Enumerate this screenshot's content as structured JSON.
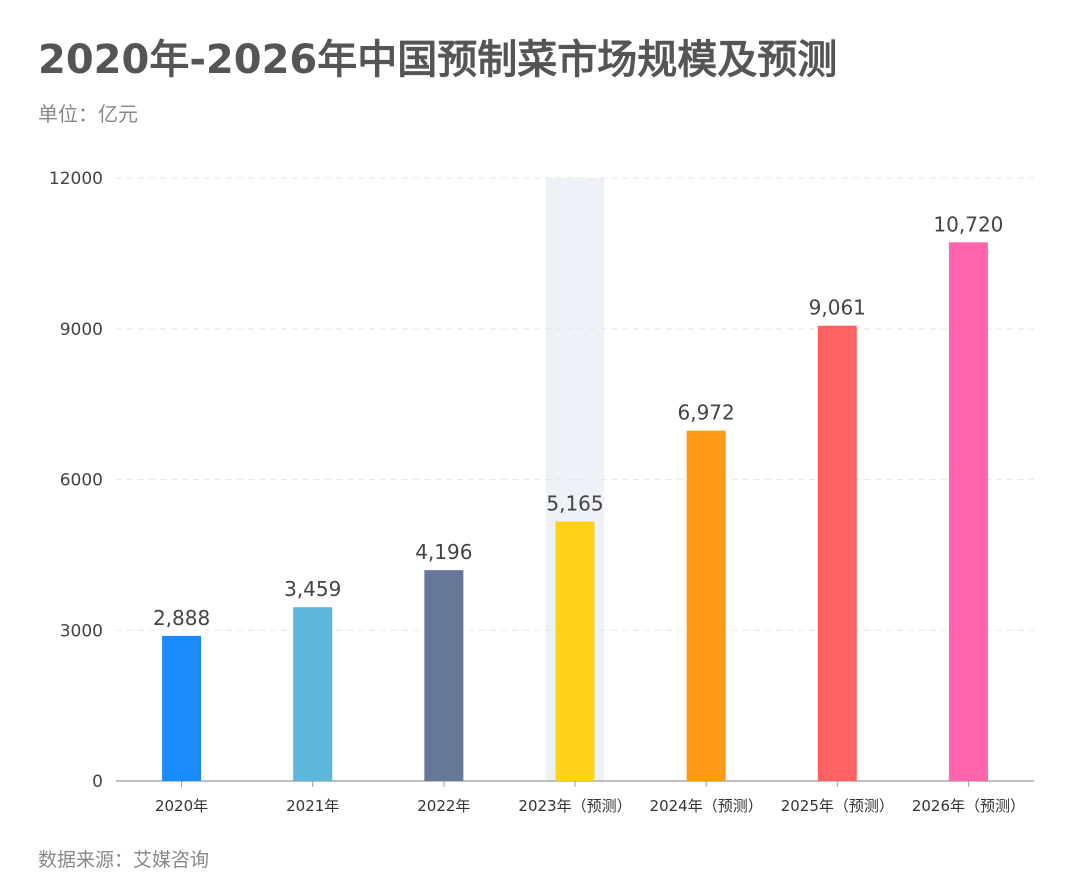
{
  "title": "2020年-2026年中国预制菜市场规模及预测",
  "unit_label": "单位：亿元",
  "source_label": "数据来源：艾媒咨询",
  "chart_data": {
    "type": "bar",
    "title": "2020年-2026年中国预制菜市场规模及预测",
    "xlabel": "",
    "ylabel": "单位：亿元",
    "ylim": [
      0,
      12000
    ],
    "yticks": [
      0,
      3000,
      6000,
      9000,
      12000
    ],
    "grid": true,
    "highlight_category_index": 3,
    "categories": [
      "2020年",
      "2021年",
      "2022年",
      "2023年（预测）",
      "2024年（预测）",
      "2025年（预测）",
      "2026年（预测）"
    ],
    "values": [
      2888,
      3459,
      4196,
      5165,
      6972,
      9061,
      10720
    ],
    "value_labels": [
      "2,888",
      "3,459",
      "4,196",
      "5,165",
      "6,972",
      "9,061",
      "10,720"
    ],
    "colors": [
      "#1a8cff",
      "#5db6dc",
      "#66779a",
      "#ffd21a",
      "#ff9a14",
      "#ff6262",
      "#ff64ac"
    ],
    "highlight_color": "#eef1f8",
    "grid_color": "#e6e6e6",
    "axis_color": "#999999"
  }
}
